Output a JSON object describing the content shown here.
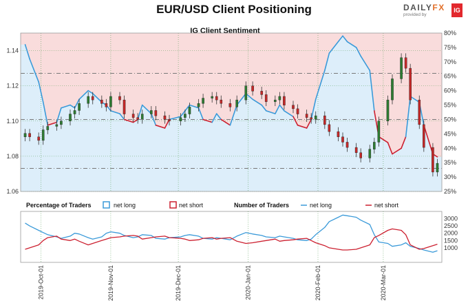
{
  "header": {
    "title": "EUR/USD Client Positioning"
  },
  "logo": {
    "brand_a": "DAILY",
    "brand_b": "FX",
    "provided": "provided by",
    "ig": "IG"
  },
  "colors": {
    "long": "#3a9ad9",
    "short": "#cc1f2f",
    "long_fill": "#ddeefa",
    "short_fill": "#f9dcdc",
    "candle_up": "#2e7d32",
    "candle_down": "#c62828",
    "grid_green": "#5aa05a"
  },
  "chart_data": [
    {
      "type": "candlestick+area",
      "title": "IG Client Sentiment",
      "x_dates": [
        "2019-09-24",
        "2019-09-26",
        "2019-09-30",
        "2019-10-02",
        "2019-10-04",
        "2019-10-08",
        "2019-10-10",
        "2019-10-14",
        "2019-10-16",
        "2019-10-18",
        "2019-10-22",
        "2019-10-24",
        "2019-10-28",
        "2019-10-30",
        "2019-11-01",
        "2019-11-05",
        "2019-11-07",
        "2019-11-11",
        "2019-11-13",
        "2019-11-15",
        "2019-11-19",
        "2019-11-21",
        "2019-11-25",
        "2019-11-27",
        "2019-12-02",
        "2019-12-04",
        "2019-12-06",
        "2019-12-10",
        "2019-12-12",
        "2019-12-16",
        "2019-12-18",
        "2019-12-20",
        "2019-12-24",
        "2019-12-27",
        "2019-12-31",
        "2020-01-03",
        "2020-01-07",
        "2020-01-09",
        "2020-01-13",
        "2020-01-15",
        "2020-01-17",
        "2020-01-21",
        "2020-01-23",
        "2020-01-27",
        "2020-01-29",
        "2020-01-31",
        "2020-02-04",
        "2020-02-06",
        "2020-02-10",
        "2020-02-12",
        "2020-02-14",
        "2020-02-18",
        "2020-02-20",
        "2020-02-24",
        "2020-02-26",
        "2020-02-28",
        "2020-03-03",
        "2020-03-05",
        "2020-03-09",
        "2020-03-11",
        "2020-03-13",
        "2020-03-17",
        "2020-03-19",
        "2020-03-23",
        "2020-03-25"
      ],
      "close": [
        1.093,
        1.091,
        1.089,
        1.095,
        1.097,
        1.098,
        1.1,
        1.104,
        1.106,
        1.11,
        1.114,
        1.112,
        1.11,
        1.108,
        1.114,
        1.112,
        1.104,
        1.102,
        1.101,
        1.104,
        1.106,
        1.103,
        1.101,
        1.1,
        1.102,
        1.104,
        1.108,
        1.11,
        1.113,
        1.114,
        1.112,
        1.11,
        1.108,
        1.112,
        1.12,
        1.117,
        1.115,
        1.111,
        1.112,
        1.114,
        1.109,
        1.107,
        1.104,
        1.102,
        1.101,
        1.103,
        1.098,
        1.094,
        1.091,
        1.088,
        1.085,
        1.082,
        1.079,
        1.084,
        1.088,
        1.1,
        1.112,
        1.124,
        1.136,
        1.13,
        1.112,
        1.098,
        1.085,
        1.071,
        1.076
      ],
      "net_long_pct": [
        76,
        71,
        63,
        56,
        48,
        49,
        54,
        55,
        54,
        57,
        60,
        59,
        56,
        55,
        53,
        52,
        50,
        49,
        50,
        55,
        52,
        48,
        47,
        50,
        51,
        53,
        55,
        54,
        50,
        49,
        52,
        50,
        48,
        55,
        59,
        57,
        55,
        53,
        52,
        55,
        53,
        51,
        48,
        47,
        50,
        57,
        67,
        73,
        77,
        79,
        77,
        75,
        72,
        67,
        53,
        44,
        42,
        38,
        40,
        44,
        58,
        56,
        48,
        38,
        37
      ],
      "y_axis_left": {
        "min": 1.06,
        "max": 1.15,
        "ticks": [
          "1.06",
          "1.08",
          "1.10",
          "1.12",
          "1.14"
        ]
      },
      "y_axis_right": {
        "min": 25,
        "max": 80,
        "ticks": [
          "25%",
          "30%",
          "35%",
          "40%",
          "45%",
          "50%",
          "55%",
          "60%",
          "65%",
          "70%",
          "75%",
          "80%"
        ]
      },
      "ref_lines_pct": [
        33,
        50,
        66
      ]
    },
    {
      "type": "line",
      "legend": {
        "pct_title": "Percentage of Traders",
        "net_long": "net long",
        "net_short": "net short",
        "num_title": "Number of Traders"
      },
      "net_long_traders": [
        2700,
        2500,
        2200,
        2050,
        1900,
        1750,
        1650,
        1800,
        2000,
        1950,
        1700,
        1600,
        1750,
        2000,
        2100,
        2000,
        1850,
        1700,
        1750,
        1900,
        1850,
        1650,
        1600,
        1700,
        1750,
        1850,
        1900,
        1800,
        1650,
        1600,
        1700,
        1650,
        1550,
        1800,
        2050,
        1950,
        1850,
        1750,
        1700,
        1800,
        1750,
        1650,
        1550,
        1500,
        1600,
        1900,
        2400,
        2800,
        3100,
        3250,
        3200,
        3100,
        2900,
        2600,
        1900,
        1400,
        1300,
        1100,
        1200,
        1350,
        1100,
        950,
        850,
        700,
        800
      ],
      "net_short_traders": [
        900,
        1000,
        1200,
        1500,
        1700,
        1800,
        1600,
        1500,
        1600,
        1450,
        1200,
        1300,
        1500,
        1600,
        1700,
        1750,
        1800,
        1850,
        1800,
        1600,
        1700,
        1750,
        1800,
        1700,
        1650,
        1600,
        1500,
        1550,
        1650,
        1700,
        1600,
        1650,
        1700,
        1450,
        1300,
        1350,
        1450,
        1500,
        1600,
        1450,
        1500,
        1550,
        1600,
        1650,
        1500,
        1350,
        1150,
        1000,
        900,
        850,
        850,
        900,
        1000,
        1200,
        1700,
        1850,
        2200,
        2300,
        2200,
        1900,
        1200,
        900,
        950,
        1150,
        1250
      ],
      "y_axis": {
        "min": 0,
        "max": 3500,
        "ticks": [
          "1000",
          "1500",
          "2000",
          "2500",
          "3000"
        ]
      },
      "x_ticks": [
        "2019-Oct-01",
        "2019-Nov-01",
        "2019-Dec-01",
        "2020-Jan-01",
        "2020-Feb-01",
        "2020-Mar-01"
      ]
    }
  ]
}
